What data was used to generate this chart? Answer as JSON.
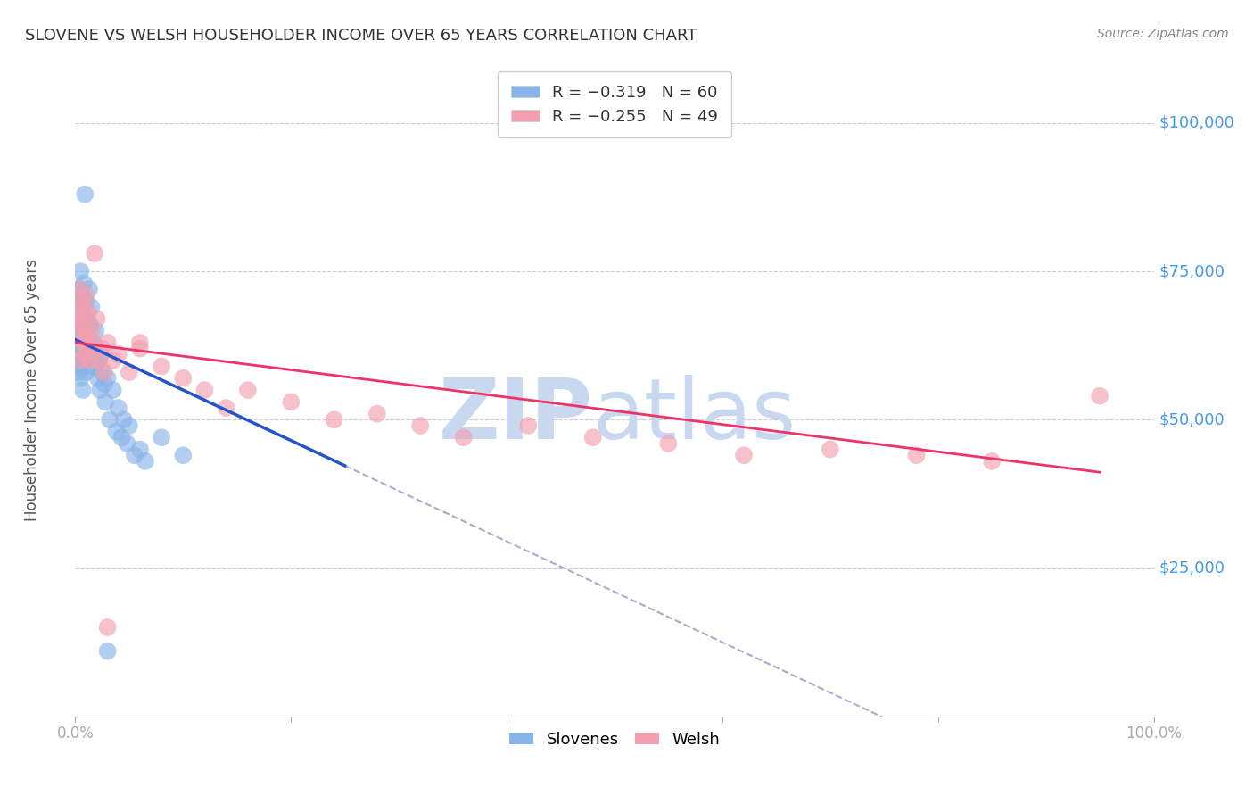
{
  "title": "SLOVENE VS WELSH HOUSEHOLDER INCOME OVER 65 YEARS CORRELATION CHART",
  "source": "Source: ZipAtlas.com",
  "ylabel": "Householder Income Over 65 years",
  "xlim": [
    0.0,
    1.0
  ],
  "ylim": [
    0,
    110000
  ],
  "yticks": [
    0,
    25000,
    50000,
    75000,
    100000
  ],
  "ytick_labels": [
    "",
    "$25,000",
    "$50,000",
    "$75,000",
    "$100,000"
  ],
  "slovene_color": "#89b4e8",
  "welsh_color": "#f4a0b0",
  "slovene_line_color": "#2255cc",
  "welsh_line_color": "#ee3366",
  "dashed_line_color": "#aaaacc",
  "slovene_x": [
    0.002,
    0.002,
    0.003,
    0.003,
    0.003,
    0.004,
    0.004,
    0.004,
    0.005,
    0.005,
    0.005,
    0.005,
    0.006,
    0.006,
    0.006,
    0.007,
    0.007,
    0.007,
    0.008,
    0.008,
    0.008,
    0.009,
    0.009,
    0.01,
    0.01,
    0.01,
    0.011,
    0.011,
    0.012,
    0.013,
    0.013,
    0.014,
    0.015,
    0.016,
    0.017,
    0.018,
    0.019,
    0.02,
    0.021,
    0.022,
    0.023,
    0.024,
    0.025,
    0.027,
    0.028,
    0.03,
    0.032,
    0.035,
    0.038,
    0.04,
    0.043,
    0.045,
    0.048,
    0.05,
    0.055,
    0.06,
    0.065,
    0.08,
    0.1,
    0.03
  ],
  "slovene_y": [
    63000,
    60000,
    65000,
    58000,
    70000,
    66000,
    59000,
    72000,
    68000,
    62000,
    75000,
    57000,
    71000,
    64000,
    59000,
    69000,
    62000,
    55000,
    73000,
    66000,
    60000,
    88000,
    63000,
    70000,
    65000,
    58000,
    67000,
    62000,
    64000,
    72000,
    59000,
    66000,
    69000,
    63000,
    61000,
    59000,
    65000,
    62000,
    57000,
    60000,
    55000,
    61000,
    58000,
    56000,
    53000,
    57000,
    50000,
    55000,
    48000,
    52000,
    47000,
    50000,
    46000,
    49000,
    44000,
    45000,
    43000,
    47000,
    44000,
    11000
  ],
  "welsh_x": [
    0.002,
    0.003,
    0.004,
    0.005,
    0.005,
    0.006,
    0.007,
    0.007,
    0.008,
    0.009,
    0.009,
    0.01,
    0.011,
    0.012,
    0.013,
    0.015,
    0.017,
    0.018,
    0.02,
    0.022,
    0.025,
    0.027,
    0.03,
    0.035,
    0.04,
    0.05,
    0.06,
    0.08,
    0.1,
    0.12,
    0.14,
    0.16,
    0.2,
    0.24,
    0.28,
    0.32,
    0.36,
    0.42,
    0.48,
    0.55,
    0.62,
    0.7,
    0.78,
    0.85,
    0.95,
    0.01,
    0.014,
    0.06,
    0.03
  ],
  "welsh_y": [
    65000,
    68000,
    72000,
    66000,
    60000,
    70000,
    67000,
    63000,
    69000,
    65000,
    61000,
    71000,
    64000,
    68000,
    62000,
    65000,
    63000,
    78000,
    67000,
    60000,
    62000,
    58000,
    63000,
    60000,
    61000,
    58000,
    63000,
    59000,
    57000,
    55000,
    52000,
    55000,
    53000,
    50000,
    51000,
    49000,
    47000,
    49000,
    47000,
    46000,
    44000,
    45000,
    44000,
    43000,
    54000,
    62000,
    60000,
    62000,
    15000
  ]
}
